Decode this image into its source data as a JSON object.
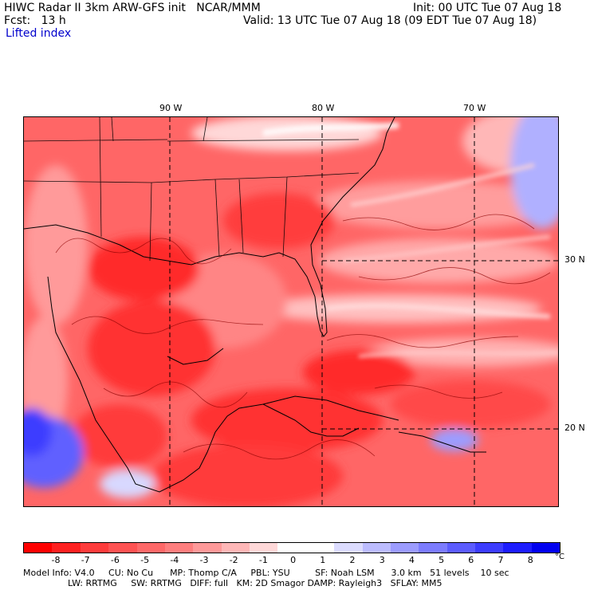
{
  "header": {
    "title_left": "HIWC Radar II 3km ARW-GFS init   NCAR/MMM",
    "init": "Init: 00 UTC Tue 07 Aug 18",
    "fcst": "Fcst:   13 h",
    "valid": "Valid: 13 UTC Tue 07 Aug 18 (09 EDT Tue 07 Aug 18)",
    "field": "Lifted index"
  },
  "map": {
    "lon_labels": [
      "90 W",
      "80 W",
      "70 W"
    ],
    "lat_labels": [
      "30 N",
      "20 N"
    ]
  },
  "colorbar": {
    "ticks": [
      "-8",
      "-7",
      "-6",
      "-5",
      "-4",
      "-3",
      "-2",
      "-1",
      "0",
      "1",
      "2",
      "3",
      "4",
      "5",
      "6",
      "7",
      "8"
    ],
    "unit": "°C",
    "colors": [
      "#ff0000",
      "#ff2020",
      "#ff3b3b",
      "#ff5252",
      "#ff6868",
      "#ff7e7e",
      "#ff9999",
      "#ffb7b7",
      "#ffd8d8",
      "#ffffff",
      "#ffffff",
      "#dcdcff",
      "#bcbcff",
      "#9c9cff",
      "#7c7cff",
      "#5c5cff",
      "#3c3cff",
      "#1c1cff",
      "#0000f0"
    ]
  },
  "footer": {
    "line1": "Model Info: V4.0     CU: No Cu      MP: Thomp C/A     PBL: YSU         SF: Noah LSM      3.0 km   51 levels    10 sec",
    "line2": "                LW: RRTMG     SW: RRTMG   DIFF: full   KM: 2D Smagor DAMP: Rayleigh3   SFLAY: MM5"
  }
}
